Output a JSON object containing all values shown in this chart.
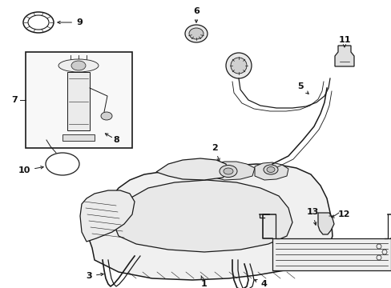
{
  "bg_color": "#ffffff",
  "lc": "#1a1a1a",
  "label_color": "#111111",
  "figsize": [
    4.89,
    3.6
  ],
  "dpi": 100,
  "lw": 0.9
}
